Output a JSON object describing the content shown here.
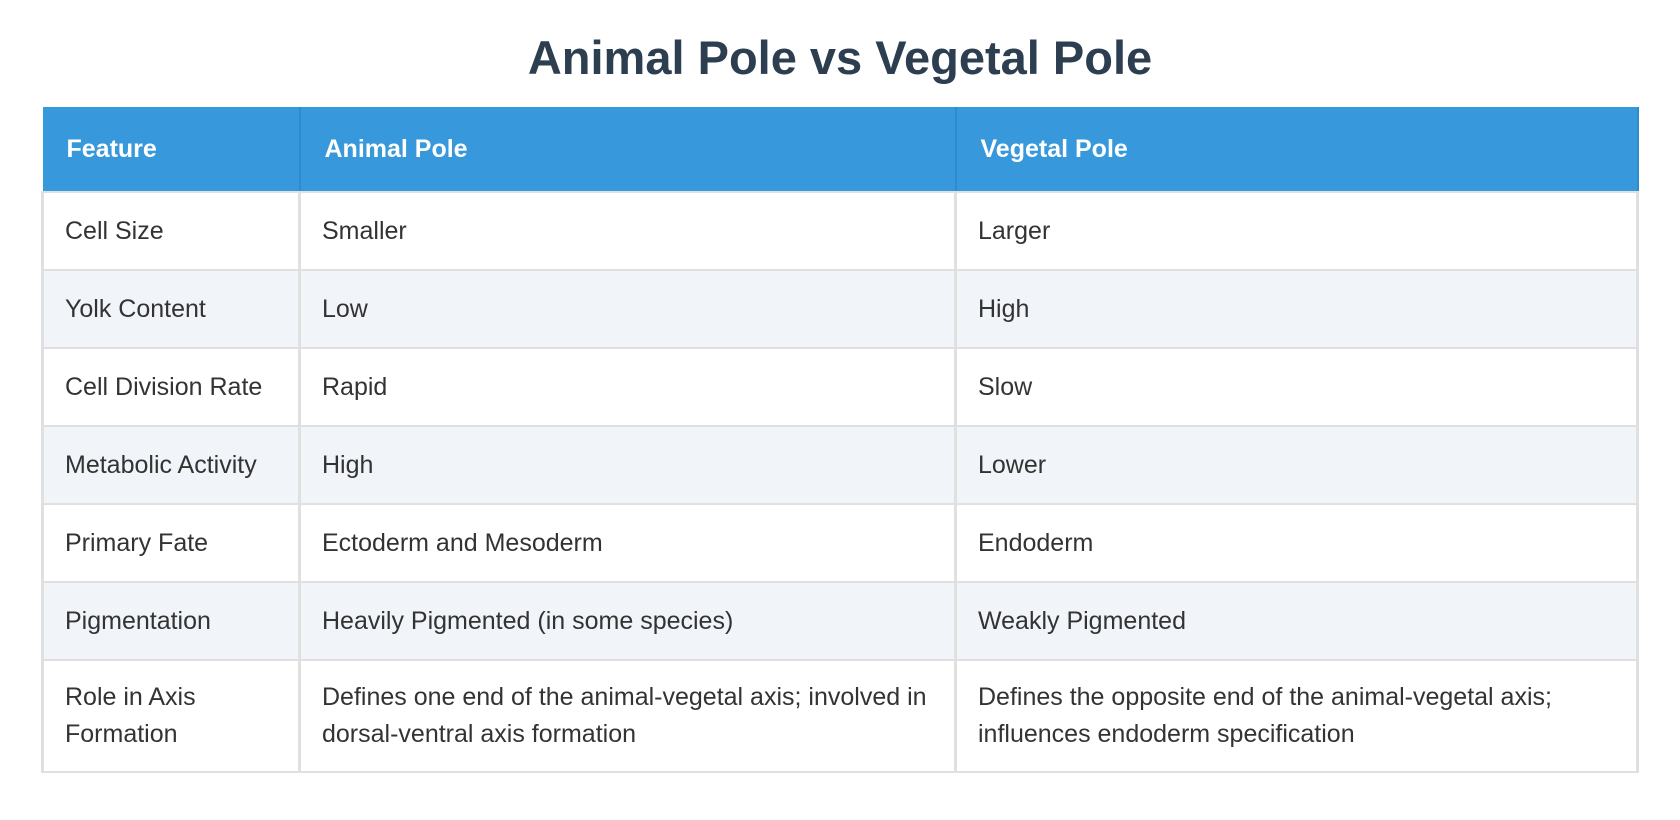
{
  "header": {
    "title": "Animal Pole vs Vegetal Pole"
  },
  "table": {
    "columns": [
      "Feature",
      "Animal Pole",
      "Vegetal Pole"
    ],
    "rows": [
      [
        "Cell Size",
        "Smaller",
        "Larger"
      ],
      [
        "Yolk Content",
        "Low",
        "High"
      ],
      [
        "Cell Division Rate",
        "Rapid",
        "Slow"
      ],
      [
        "Metabolic Activity",
        "High",
        "Lower"
      ],
      [
        "Primary Fate",
        "Ectoderm and Mesoderm",
        "Endoderm"
      ],
      [
        "Pigmentation",
        "Heavily Pigmented (in some species)",
        "Weakly Pigmented"
      ],
      [
        "Role in Axis Formation",
        "Defines one end of the animal-vegetal axis; involved in dorsal-ventral axis formation",
        "Defines the opposite end of the animal-vegetal axis; influences endoderm specification"
      ]
    ]
  }
}
